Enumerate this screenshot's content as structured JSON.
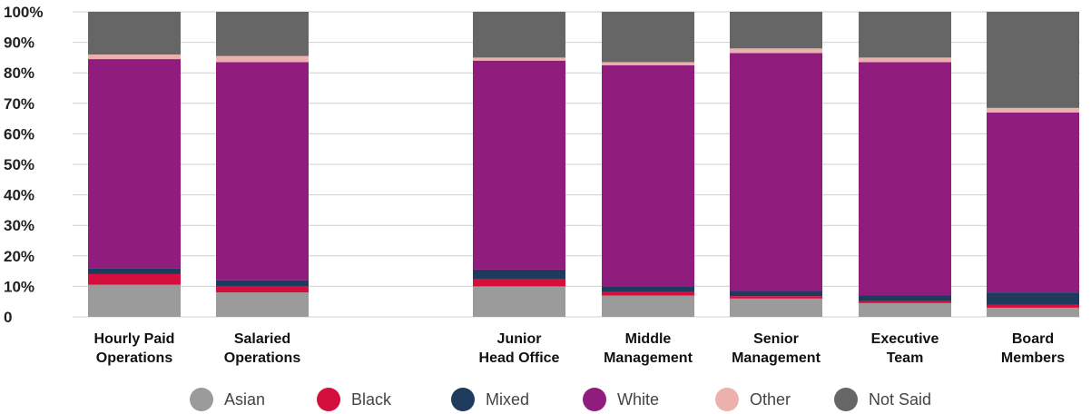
{
  "chart_data": {
    "type": "bar",
    "stacked": true,
    "y_ticks": [
      "0",
      "10%",
      "20%",
      "30%",
      "40%",
      "50%",
      "60%",
      "70%",
      "80%",
      "90%",
      "100%"
    ],
    "ylim": [
      0,
      100
    ],
    "grid": true,
    "legend_position": "bottom",
    "categories": [
      [
        "Hourly Paid",
        "Operations"
      ],
      [
        "Salaried",
        "Operations"
      ],
      [
        "Junior",
        "Head Office"
      ],
      [
        "Middle",
        "Management"
      ],
      [
        "Senior",
        "Management"
      ],
      [
        "Executive",
        "Team"
      ],
      [
        "Board",
        "Members"
      ]
    ],
    "series": [
      {
        "name": "Asian",
        "color": "#9b9b9b",
        "values": [
          10.5,
          8,
          10,
          7,
          6,
          4.5,
          3
        ]
      },
      {
        "name": "Black",
        "color": "#d50f3d",
        "values": [
          3.5,
          2,
          2.5,
          1.2,
          0.8,
          0.6,
          1
        ]
      },
      {
        "name": "Mixed",
        "color": "#1e3a5c",
        "values": [
          2,
          2,
          3,
          1.8,
          1.7,
          1.9,
          4
        ]
      },
      {
        "name": "White",
        "color": "#901c7e",
        "values": [
          68.5,
          71.5,
          68.5,
          72.5,
          78,
          76.5,
          59
        ]
      },
      {
        "name": "Other",
        "color": "#ecb0ad",
        "values": [
          1.5,
          2,
          1,
          1,
          1.5,
          1.5,
          1.5
        ]
      },
      {
        "name": "Not Said",
        "color": "#666666",
        "values": [
          14,
          14.5,
          15,
          16.5,
          12,
          15,
          31.5
        ]
      }
    ]
  }
}
